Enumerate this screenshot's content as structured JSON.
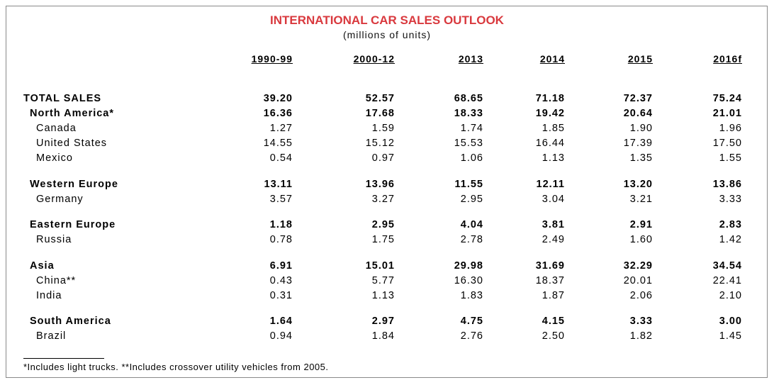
{
  "title": "INTERNATIONAL CAR SALES OUTLOOK",
  "subtitle": "(millions of units)",
  "columns": [
    "1990-99",
    "2000-12",
    "2013",
    "2014",
    "2015",
    "2016f"
  ],
  "rows": [
    {
      "label": "TOTAL SALES",
      "values": [
        "39.20",
        "52.57",
        "68.65",
        "71.18",
        "72.37",
        "75.24"
      ]
    },
    {
      "label": "North America*",
      "values": [
        "16.36",
        "17.68",
        "18.33",
        "19.42",
        "20.64",
        "21.01"
      ]
    },
    {
      "label": "Canada",
      "values": [
        "1.27",
        "1.59",
        "1.74",
        "1.85",
        "1.90",
        "1.96"
      ]
    },
    {
      "label": "United States",
      "values": [
        "14.55",
        "15.12",
        "15.53",
        "16.44",
        "17.39",
        "17.50"
      ]
    },
    {
      "label": "Mexico",
      "values": [
        "0.54",
        "0.97",
        "1.06",
        "1.13",
        "1.35",
        "1.55"
      ]
    },
    {
      "label": "Western Europe",
      "values": [
        "13.11",
        "13.96",
        "11.55",
        "12.11",
        "13.20",
        "13.86"
      ]
    },
    {
      "label": "Germany",
      "values": [
        "3.57",
        "3.27",
        "2.95",
        "3.04",
        "3.21",
        "3.33"
      ]
    },
    {
      "label": "Eastern Europe",
      "values": [
        "1.18",
        "2.95",
        "4.04",
        "3.81",
        "2.91",
        "2.83"
      ]
    },
    {
      "label": "Russia",
      "values": [
        "0.78",
        "1.75",
        "2.78",
        "2.49",
        "1.60",
        "1.42"
      ]
    },
    {
      "label": "Asia",
      "values": [
        "6.91",
        "15.01",
        "29.98",
        "31.69",
        "32.29",
        "34.54"
      ]
    },
    {
      "label": "China**",
      "values": [
        "0.43",
        "5.77",
        "16.30",
        "18.37",
        "20.01",
        "22.41"
      ]
    },
    {
      "label": "India",
      "values": [
        "0.31",
        "1.13",
        "1.83",
        "1.87",
        "2.06",
        "2.10"
      ]
    },
    {
      "label": "South America",
      "values": [
        "1.64",
        "2.97",
        "4.75",
        "4.15",
        "3.33",
        "3.00"
      ]
    },
    {
      "label": "Brazil",
      "values": [
        "0.94",
        "1.84",
        "2.76",
        "2.50",
        "1.82",
        "1.45"
      ]
    }
  ],
  "footnote": "*Includes light trucks.  **Includes crossover utility vehicles from 2005."
}
